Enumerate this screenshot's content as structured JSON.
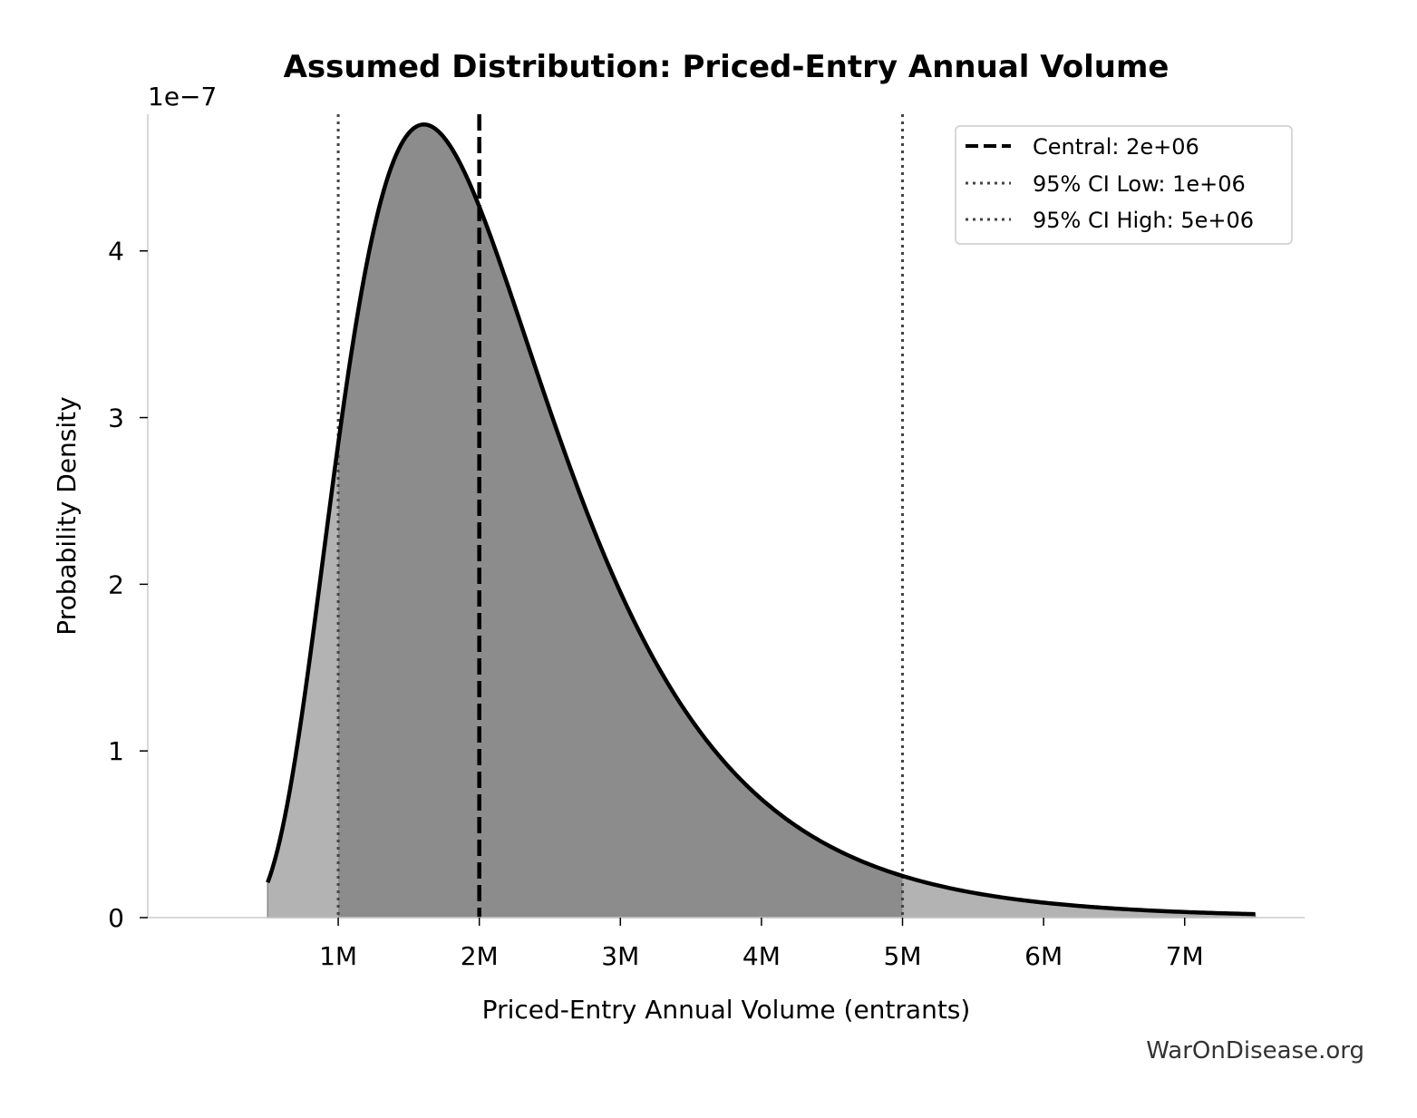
{
  "chart_data": {
    "type": "area",
    "title": "Assumed Distribution: Priced-Entry Annual Volume",
    "xlabel": "Priced-Entry Annual Volume (entrants)",
    "ylabel": "Probability Density",
    "y_multiplier_label": "1e−7",
    "y_scale": 1e-07,
    "xlim": [
      -350000,
      7850000
    ],
    "ylim": [
      0,
      4.82e-07
    ],
    "x_ticks": [
      1000000,
      2000000,
      3000000,
      4000000,
      5000000,
      6000000,
      7000000
    ],
    "x_tick_labels": [
      "1M",
      "2M",
      "3M",
      "4M",
      "5M",
      "6M",
      "7M"
    ],
    "y_ticks": [
      0,
      1e-07,
      2e-07,
      3e-07,
      4e-07
    ],
    "y_tick_labels": [
      "0",
      "1",
      "2",
      "3",
      "4"
    ],
    "distribution": {
      "kind": "lognormal",
      "median": 2000000,
      "sigma": 0.4676,
      "x_min": 500000,
      "x_max": 7500000,
      "peak_x": 1600000,
      "peak_density": 4.6e-07
    },
    "ci_region": [
      1000000,
      5000000
    ],
    "reference_lines": [
      {
        "name": "Central: 2e+06",
        "x": 2000000,
        "style": "dashed"
      },
      {
        "name": "95% CI Low: 1e+06",
        "x": 1000000,
        "style": "dotted"
      },
      {
        "name": "95% CI High: 5e+06",
        "x": 5000000,
        "style": "dotted"
      }
    ],
    "legend_position": "top-right",
    "grid": false,
    "colors": {
      "curve": "#000000",
      "tail_fill": "#b3b3b3",
      "ci_fill": "#8c8c8c",
      "central_line": "#000000",
      "ci_line": "#444444",
      "axis": "#cccccc"
    }
  },
  "source": "WarOnDisease.org"
}
